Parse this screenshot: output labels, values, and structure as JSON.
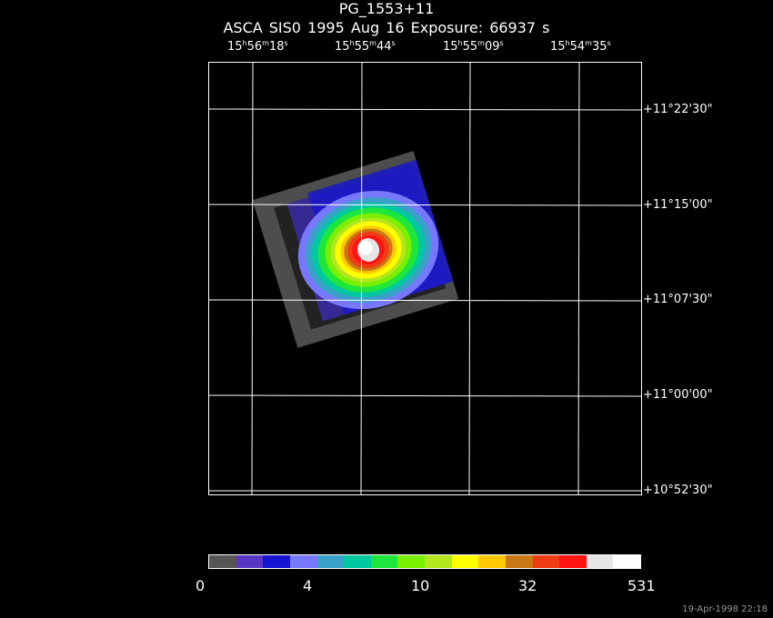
{
  "title": "PG_1553+11",
  "subtitle": "ASCA SIS0    1995 Aug 16    Exposure: 66937 s",
  "ra_labels": [
    {
      "h": "15",
      "m": "56",
      "s": "18"
    },
    {
      "h": "15",
      "m": "55",
      "s": "44"
    },
    {
      "h": "15",
      "m": "55",
      "s": "09"
    },
    {
      "h": "15",
      "m": "54",
      "s": "35"
    }
  ],
  "dec_labels": [
    "+11°22'30\"",
    "+11°15'00\"",
    "+11°07'30\"",
    "+11°00'00\"",
    "+10°52'30\""
  ],
  "colorbar": {
    "colors": [
      "#555555",
      "#5a36c6",
      "#1414d2",
      "#7878ff",
      "#3aa0c8",
      "#00c8a0",
      "#1ee63c",
      "#78f000",
      "#b4e61e",
      "#ffff00",
      "#ffc800",
      "#c87814",
      "#f03c14",
      "#ff1414",
      "#e6e6e6",
      "#ffffff"
    ],
    "labels": [
      "0",
      "4",
      "10",
      "32",
      "531"
    ]
  },
  "timestamp": "19-Apr-1998 22:18"
}
